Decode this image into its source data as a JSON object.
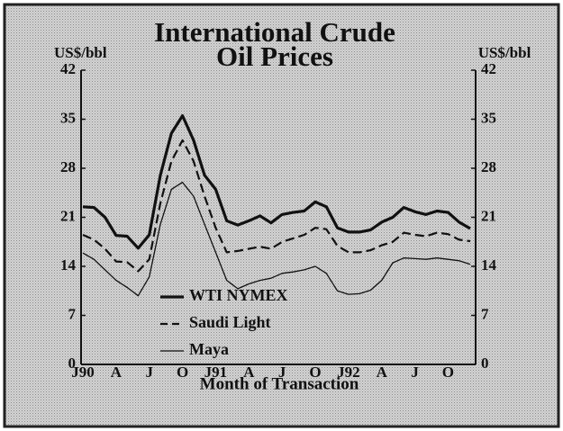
{
  "chart_data": {
    "type": "line",
    "title": "International Crude Oil Prices",
    "ylabel": "US$/bbl",
    "y2label": "US$/bbl",
    "xlabel": "Month of Transaction",
    "categories": [
      "J90",
      null,
      null,
      "A",
      null,
      null,
      "J",
      null,
      null,
      "O",
      null,
      null,
      "J91",
      null,
      null,
      "A",
      null,
      null,
      "J",
      null,
      null,
      "O",
      null,
      null,
      "J92",
      null,
      null,
      "A",
      null,
      null,
      "J",
      null,
      null,
      "O",
      null,
      null
    ],
    "ylim": [
      0,
      42
    ],
    "yticks": [
      0,
      7,
      14,
      21,
      28,
      35,
      42
    ],
    "y2lim": [
      0,
      42
    ],
    "y2ticks": [
      0,
      7,
      14,
      21,
      28,
      35,
      42
    ],
    "series": [
      {
        "name": "WTI NYMEX",
        "color": "#111111",
        "dash": "solid",
        "width": 3.2,
        "values": [
          22.5,
          22.4,
          21,
          18.4,
          18.3,
          16.6,
          18.5,
          27,
          33,
          35.5,
          32,
          27,
          25,
          20.5,
          19.9,
          20.5,
          21.2,
          20.2,
          21.4,
          21.7,
          21.9,
          23.2,
          22.5,
          19.5,
          18.9,
          18.9,
          19.2,
          20.3,
          21,
          22.4,
          21.8,
          21.4,
          21.9,
          21.7,
          20.3,
          19.4
        ]
      },
      {
        "name": "Saudi Light",
        "color": "#111111",
        "dash": "dashed",
        "width": 2.2,
        "values": [
          18.5,
          17.8,
          16.5,
          14.7,
          14.6,
          13.3,
          15,
          23,
          29,
          32,
          29,
          24,
          19.5,
          16,
          16.2,
          16.5,
          16.8,
          16.5,
          17.5,
          18,
          18.5,
          19.5,
          19.3,
          16.9,
          16,
          16,
          16.3,
          17,
          17.5,
          18.8,
          18.5,
          18.3,
          18.8,
          18.6,
          17.8,
          17.6
        ]
      },
      {
        "name": "Maya",
        "color": "#111111",
        "dash": "solid",
        "width": 1.3,
        "values": [
          15.9,
          15,
          13.5,
          12,
          11,
          9.8,
          12.5,
          20,
          25,
          26,
          24,
          20,
          16,
          12,
          10.8,
          11.5,
          12,
          12.3,
          13,
          13.2,
          13.5,
          14,
          13,
          10.5,
          10,
          10.1,
          10.6,
          12,
          14.5,
          15.2,
          15.1,
          15,
          15.2,
          15,
          14.8,
          14.3
        ]
      }
    ],
    "grid": false
  }
}
